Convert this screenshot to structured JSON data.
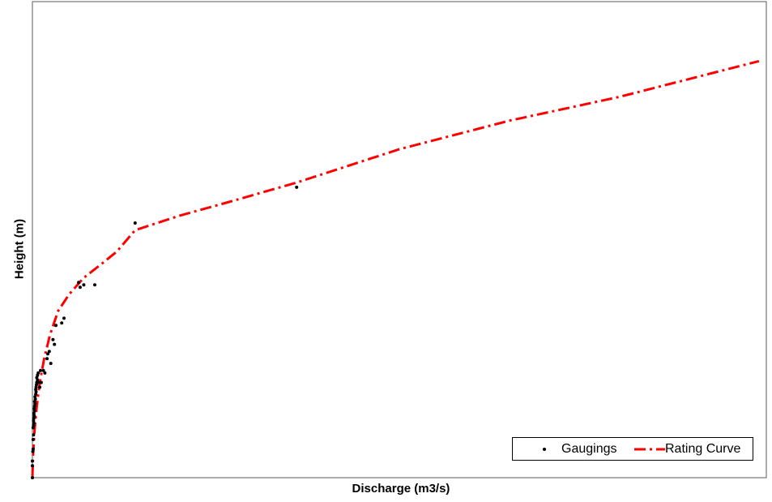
{
  "chart_data": {
    "type": "scatter",
    "title": "",
    "xlabel": "Discharge (m3/s)",
    "ylabel": "Height (m)",
    "xlim": [
      0,
      100
    ],
    "ylim": [
      0,
      100
    ],
    "grid": false,
    "legend_position": "bottom-right",
    "series": [
      {
        "name": "Gaugings",
        "kind": "points",
        "color": "#000000",
        "points": [
          [
            0.0,
            0.0
          ],
          [
            0.0,
            2.5
          ],
          [
            0.0,
            3.5
          ],
          [
            0.05,
            5.5
          ],
          [
            0.1,
            6.0
          ],
          [
            0.1,
            8.0
          ],
          [
            0.15,
            9.0
          ],
          [
            0.1,
            10.5
          ],
          [
            0.15,
            11.0
          ],
          [
            0.2,
            11.5
          ],
          [
            0.15,
            12.0
          ],
          [
            0.2,
            12.5
          ],
          [
            0.25,
            13.0
          ],
          [
            0.2,
            13.5
          ],
          [
            0.3,
            14.0
          ],
          [
            0.25,
            14.5
          ],
          [
            0.3,
            15.0
          ],
          [
            0.35,
            15.5
          ],
          [
            0.3,
            16.0
          ],
          [
            0.4,
            16.5
          ],
          [
            0.35,
            17.0
          ],
          [
            0.45,
            17.5
          ],
          [
            0.5,
            18.0
          ],
          [
            0.45,
            18.5
          ],
          [
            0.5,
            19.0
          ],
          [
            0.55,
            19.5
          ],
          [
            0.6,
            20.0
          ],
          [
            0.7,
            20.5
          ],
          [
            0.6,
            21.0
          ],
          [
            0.7,
            21.5
          ],
          [
            0.8,
            22.0
          ],
          [
            1.0,
            19.0
          ],
          [
            0.8,
            20.0
          ],
          [
            1.1,
            22.5
          ],
          [
            1.2,
            20.0
          ],
          [
            1.5,
            22.5
          ],
          [
            1.7,
            22.0
          ],
          [
            2.0,
            25.0
          ],
          [
            2.1,
            26.0
          ],
          [
            2.5,
            24.0
          ],
          [
            2.3,
            26.5
          ],
          [
            2.8,
            29.0
          ],
          [
            3.2,
            32.0
          ],
          [
            4.0,
            32.5
          ],
          [
            3.0,
            28.0
          ],
          [
            4.3,
            33.5
          ],
          [
            6.5,
            40.0
          ],
          [
            7.0,
            40.5
          ],
          [
            8.5,
            40.5
          ],
          [
            6.3,
            41.0
          ],
          [
            14.0,
            53.5
          ],
          [
            36.0,
            61.0
          ]
        ]
      },
      {
        "name": "Rating Curve",
        "kind": "line",
        "color": "#ff0000",
        "points": [
          [
            0.0,
            0.0
          ],
          [
            0.1,
            5.0
          ],
          [
            0.3,
            10.0
          ],
          [
            0.6,
            15.0
          ],
          [
            1.0,
            20.0
          ],
          [
            1.6,
            25.0
          ],
          [
            2.4,
            30.0
          ],
          [
            3.5,
            35.0
          ],
          [
            5.0,
            38.5
          ],
          [
            7.0,
            42.0
          ],
          [
            9.5,
            45.0
          ],
          [
            11.5,
            47.5
          ],
          [
            14.0,
            52.0
          ],
          [
            20.0,
            55.0
          ],
          [
            27.0,
            58.0
          ],
          [
            36.0,
            62.0
          ],
          [
            50.0,
            69.0
          ],
          [
            65.0,
            75.0
          ],
          [
            80.0,
            80.0
          ],
          [
            99.0,
            87.5
          ]
        ]
      }
    ]
  }
}
